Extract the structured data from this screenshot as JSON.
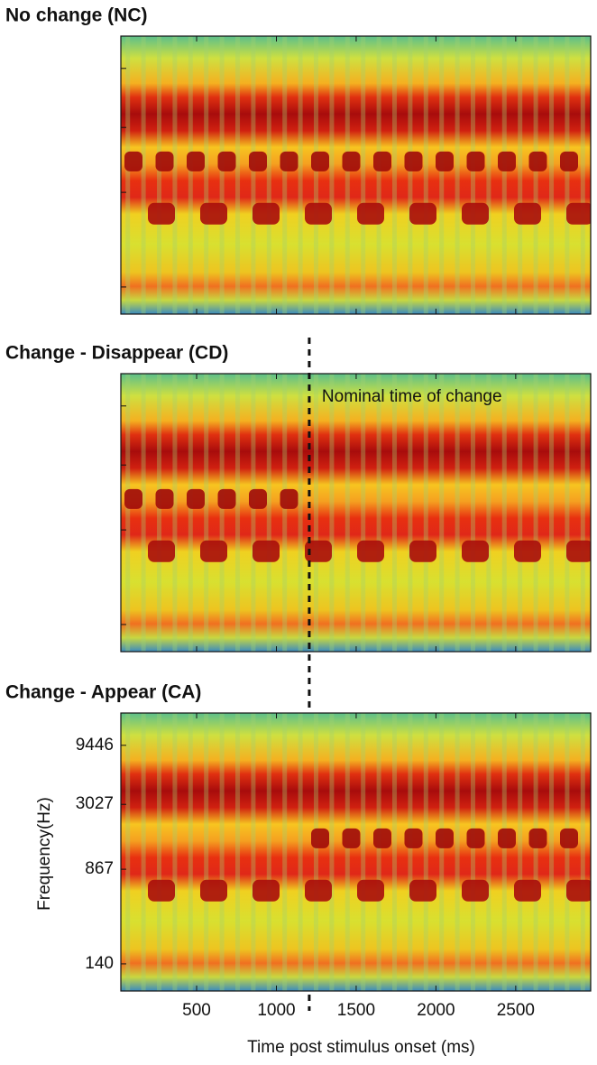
{
  "chart_data": [
    {
      "type": "spectrogram",
      "title": "No change  (NC)",
      "xlim": [
        25,
        2970
      ],
      "ylim": [
        83,
        17600
      ],
      "yscale": "log"
    },
    {
      "type": "spectrogram",
      "title": "Change - Disappear (CD)",
      "xlim": [
        25,
        2970
      ],
      "ylim": [
        83,
        17600
      ],
      "yscale": "log",
      "annotation": {
        "text": "Nominal time of change",
        "x": 1206
      }
    },
    {
      "type": "spectrogram",
      "title": "Change - Appear (CA)",
      "xlim": [
        25,
        2970
      ],
      "ylim": [
        83,
        17600
      ],
      "yscale": "log",
      "xticks": [
        500,
        1000,
        1500,
        2000,
        2500
      ],
      "yticks": [
        140,
        867,
        3027,
        9446
      ],
      "xlabel": "Time post stimulus onset (ms)",
      "ylabel": "Frequency(Hz)"
    }
  ]
}
